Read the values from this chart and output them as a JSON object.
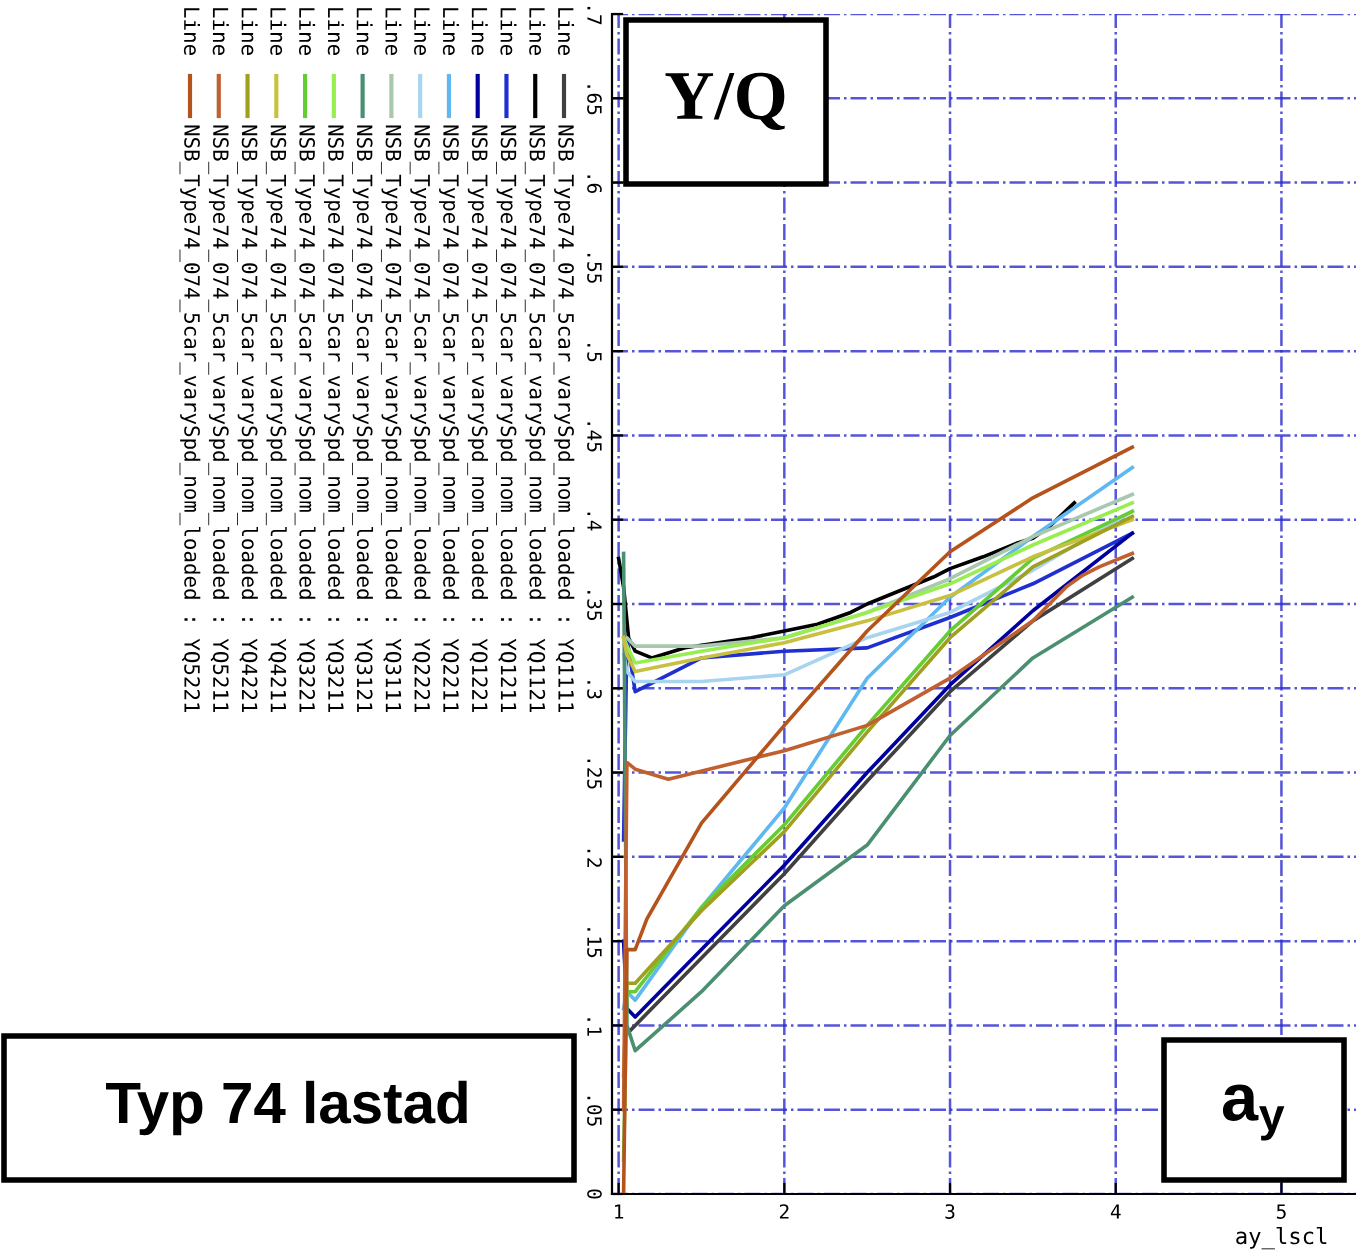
{
  "chart_data": {
    "type": "line",
    "xlabel": "ay_lscl",
    "legend_title": "Line",
    "annotations": [
      "Y/Q",
      "Typ 74 lastad",
      "a$_{y}$"
    ],
    "xlim": [
      0.96,
      5.45
    ],
    "ylim": [
      0,
      0.7
    ],
    "xticks": [
      1,
      2,
      3,
      4,
      5
    ],
    "yticks": [
      0,
      {
        "value": 0.05,
        "label": ".05"
      },
      {
        "value": 0.1,
        "label": ".1"
      },
      {
        "value": 0.15,
        "label": ".15"
      },
      {
        "value": 0.2,
        "label": ".2"
      },
      {
        "value": 0.25,
        "label": ".25"
      },
      {
        "value": 0.3,
        "label": ".3"
      },
      {
        "value": 0.35,
        "label": ".35"
      },
      {
        "value": 0.4,
        "label": ".4"
      },
      {
        "value": 0.45,
        "label": ".45"
      },
      {
        "value": 0.5,
        "label": ".5"
      },
      {
        "value": 0.55,
        "label": ".55"
      },
      {
        "value": 0.6,
        "label": ".6"
      },
      {
        "value": 0.65,
        "label": ".65"
      },
      {
        "value": 0.7,
        "label": ".7"
      }
    ],
    "grid": true,
    "legend": "left",
    "marker": "none",
    "line_style": "solid",
    "series": [
      {
        "name": "NSB_Type74_074_5car_varySpd_nom_loaded : YQ1111",
        "color": "#404040",
        "x": [
          1.05,
          1.1,
          1.5,
          2,
          2.5,
          3,
          3.5,
          4.1
        ],
        "values": [
          0.095,
          0.1,
          0.14,
          0.19,
          0.245,
          0.298,
          0.34,
          0.377
        ]
      },
      {
        "name": "NSB_Type74_074_5car_varySpd_nom_loaded : YQ1121",
        "color": "#000000",
        "x": [
          1.0,
          1.03,
          1.06,
          1.1,
          1.2,
          1.4,
          1.6,
          1.8,
          2.0,
          2.2,
          2.4,
          2.5,
          2.7,
          2.9,
          3.0,
          3.2,
          3.4,
          3.5,
          3.6,
          3.75
        ],
        "values": [
          0.377,
          0.36,
          0.33,
          0.322,
          0.318,
          0.324,
          0.327,
          0.33,
          0.334,
          0.338,
          0.345,
          0.35,
          0.358,
          0.366,
          0.371,
          0.378,
          0.386,
          0.389,
          0.396,
          0.41
        ]
      },
      {
        "name": "NSB_Type74_074_5car_varySpd_nom_loaded : YQ1211",
        "color": "#1f2fd0",
        "x": [
          1.03,
          1.05,
          1.1,
          1.5,
          2,
          2.5,
          3,
          3.5,
          4.1
        ],
        "values": [
          0.21,
          0.33,
          0.298,
          0.318,
          0.322,
          0.324,
          0.342,
          0.362,
          0.392
        ]
      },
      {
        "name": "NSB_Type74_074_5car_varySpd_nom_loaded : YQ1221",
        "color": "#0000a0",
        "x": [
          1.03,
          1.05,
          1.1,
          1.5,
          2,
          2.5,
          3,
          3.5,
          4.1
        ],
        "values": [
          0.15,
          0.11,
          0.105,
          0.145,
          0.195,
          0.25,
          0.302,
          0.346,
          0.392
        ]
      },
      {
        "name": "NSB_Type74_074_5car_varySpd_nom_loaded : YQ2211",
        "color": "#60b8f0",
        "x": [
          1.03,
          1.05,
          1.1,
          1.5,
          2,
          2.5,
          3,
          3.5,
          4.1
        ],
        "values": [
          0.11,
          0.12,
          0.115,
          0.17,
          0.229,
          0.306,
          0.354,
          0.39,
          0.431
        ]
      },
      {
        "name": "NSB_Type74_074_5car_varySpd_nom_loaded : YQ2221",
        "color": "#a8d4f0",
        "x": [
          1.03,
          1.05,
          1.1,
          1.5,
          2,
          2.5,
          3,
          3.5,
          4.1
        ],
        "values": [
          0.32,
          0.31,
          0.304,
          0.304,
          0.308,
          0.33,
          0.345,
          0.37,
          0.405
        ]
      },
      {
        "name": "NSB_Type74_074_5car_varySpd_nom_loaded : YQ3111",
        "color": "#a8c8b0",
        "x": [
          1.03,
          1.05,
          1.1,
          1.5,
          2,
          2.5,
          3,
          3.5,
          4.1
        ],
        "values": [
          0.33,
          0.33,
          0.325,
          0.325,
          0.33,
          0.345,
          0.365,
          0.39,
          0.415
        ]
      },
      {
        "name": "NSB_Type74_074_5car_varySpd_nom_loaded : YQ3121",
        "color": "#4a9070",
        "x": [
          1.03,
          1.05,
          1.1,
          1.5,
          2,
          2.5,
          3,
          3.5,
          4.1
        ],
        "values": [
          0.38,
          0.1,
          0.085,
          0.12,
          0.171,
          0.207,
          0.272,
          0.318,
          0.354
        ]
      },
      {
        "name": "NSB_Type74_074_5car_varySpd_nom_loaded : YQ3211",
        "color": "#98ee50",
        "x": [
          1.03,
          1.05,
          1.1,
          1.5,
          2,
          2.5,
          3,
          3.5,
          4.1
        ],
        "values": [
          0.33,
          0.325,
          0.315,
          0.322,
          0.33,
          0.345,
          0.362,
          0.385,
          0.41
        ]
      },
      {
        "name": "NSB_Type74_074_5car_varySpd_nom_loaded : YQ3221",
        "color": "#66cc33",
        "x": [
          1.03,
          1.05,
          1.1,
          1.5,
          2,
          2.5,
          3,
          3.5,
          4.1
        ],
        "values": [
          0.02,
          0.12,
          0.12,
          0.17,
          0.219,
          0.278,
          0.334,
          0.377,
          0.405
        ]
      },
      {
        "name": "NSB_Type74_074_5car_varySpd_nom_loaded : YQ4211",
        "color": "#c8c040",
        "x": [
          1.03,
          1.05,
          1.1,
          1.5,
          2,
          2.5,
          3,
          3.5,
          4.1
        ],
        "values": [
          0.33,
          0.32,
          0.31,
          0.318,
          0.327,
          0.34,
          0.355,
          0.378,
          0.4
        ]
      },
      {
        "name": "NSB_Type74_074_5car_varySpd_nom_loaded : YQ4221",
        "color": "#a0a020",
        "x": [
          1.03,
          1.05,
          1.1,
          1.5,
          2,
          2.5,
          3,
          3.5,
          4.1
        ],
        "values": [
          0.07,
          0.125,
          0.125,
          0.168,
          0.215,
          0.274,
          0.33,
          0.372,
          0.402
        ]
      },
      {
        "name": "NSB_Type74_074_5car_varySpd_nom_loaded : YQ5211",
        "color": "#c06030",
        "x": [
          1.03,
          1.05,
          1.1,
          1.3,
          2,
          2.5,
          3,
          3.5,
          3.7,
          3.8,
          3.9,
          4.0,
          4.1
        ],
        "values": [
          0.05,
          0.256,
          0.252,
          0.246,
          0.263,
          0.278,
          0.306,
          0.34,
          0.36,
          0.367,
          0.372,
          0.376,
          0.38
        ]
      },
      {
        "name": "NSB_Type74_074_5car_varySpd_nom_loaded : YQ5221",
        "color": "#b5531d",
        "x": [
          1.03,
          1.05,
          1.1,
          1.17,
          1.5,
          2,
          2.5,
          3,
          3.5,
          4.1
        ],
        "values": [
          0.0,
          0.145,
          0.145,
          0.163,
          0.22,
          0.278,
          0.334,
          0.381,
          0.413,
          0.443
        ]
      }
    ]
  }
}
